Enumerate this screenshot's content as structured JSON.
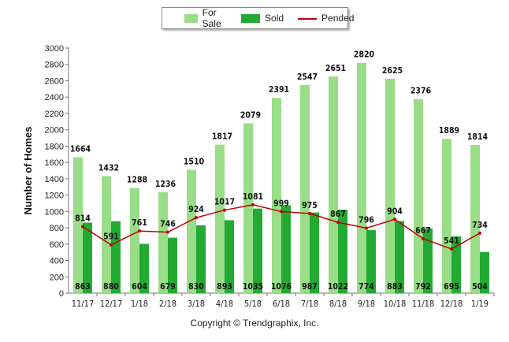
{
  "chart_data": {
    "type": "bar",
    "categories": [
      "11/17",
      "12/17",
      "1/18",
      "2/18",
      "3/18",
      "4/18",
      "5/18",
      "6/18",
      "7/18",
      "8/18",
      "9/18",
      "10/18",
      "11/18",
      "12/18",
      "1/19"
    ],
    "series": [
      {
        "name": "For Sale",
        "kind": "bar",
        "color": "#99dd88",
        "values": [
          1664,
          1432,
          1288,
          1236,
          1510,
          1817,
          2079,
          2391,
          2547,
          2651,
          2820,
          2625,
          2376,
          1889,
          1814
        ]
      },
      {
        "name": "Sold",
        "kind": "bar",
        "color": "#22aa33",
        "values": [
          863,
          880,
          604,
          679,
          830,
          893,
          1035,
          1076,
          987,
          1022,
          774,
          883,
          792,
          695,
          504
        ]
      },
      {
        "name": "Pended",
        "kind": "line",
        "color": "#c00000",
        "values": [
          814,
          591,
          761,
          746,
          924,
          1017,
          1081,
          999,
          975,
          867,
          796,
          904,
          667,
          541,
          734
        ]
      }
    ],
    "ylabel": "Number of Homes",
    "xlabel": "",
    "ylim": [
      0,
      3000
    ],
    "yticks": [
      0,
      200,
      400,
      600,
      800,
      1000,
      1200,
      1400,
      1600,
      1800,
      2000,
      2200,
      2400,
      2600,
      2800,
      3000
    ],
    "legend_position": "top-center",
    "grid": false
  },
  "footer": {
    "copyright": "Copyright © Trendgraphix, Inc."
  }
}
